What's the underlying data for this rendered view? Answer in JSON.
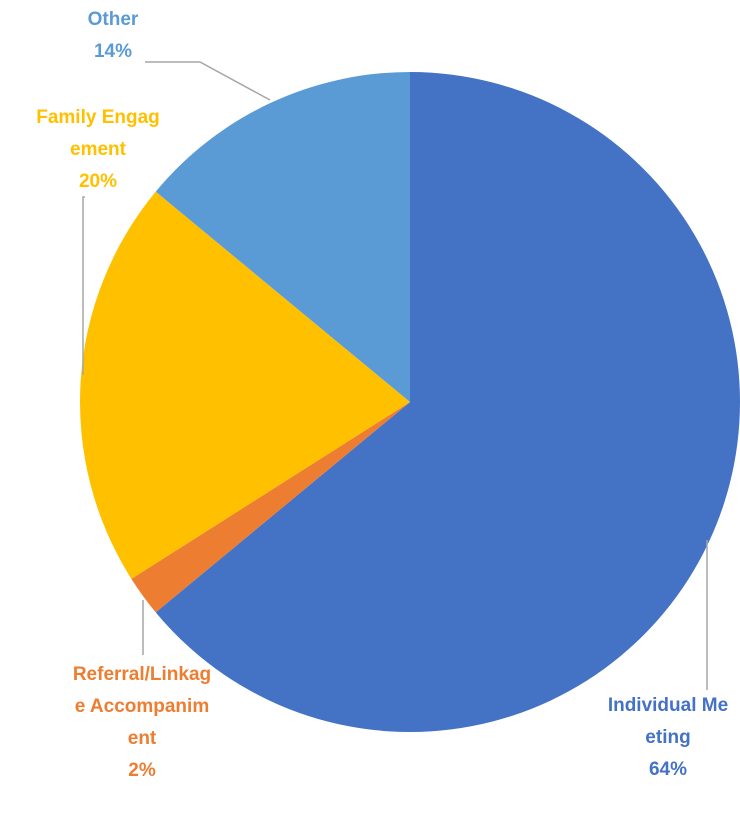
{
  "chart_data": {
    "type": "pie",
    "categories": [
      "Individual Meeting",
      "Referral/Linkage Accompaniment",
      "Family Engagement",
      "Other"
    ],
    "values": [
      64,
      2,
      20,
      14
    ],
    "value_labels": [
      "64%",
      "2%",
      "20%",
      "14%"
    ],
    "colors": [
      "#4472c4",
      "#ed7d31",
      "#ffc000",
      "#5b9bd5"
    ]
  }
}
